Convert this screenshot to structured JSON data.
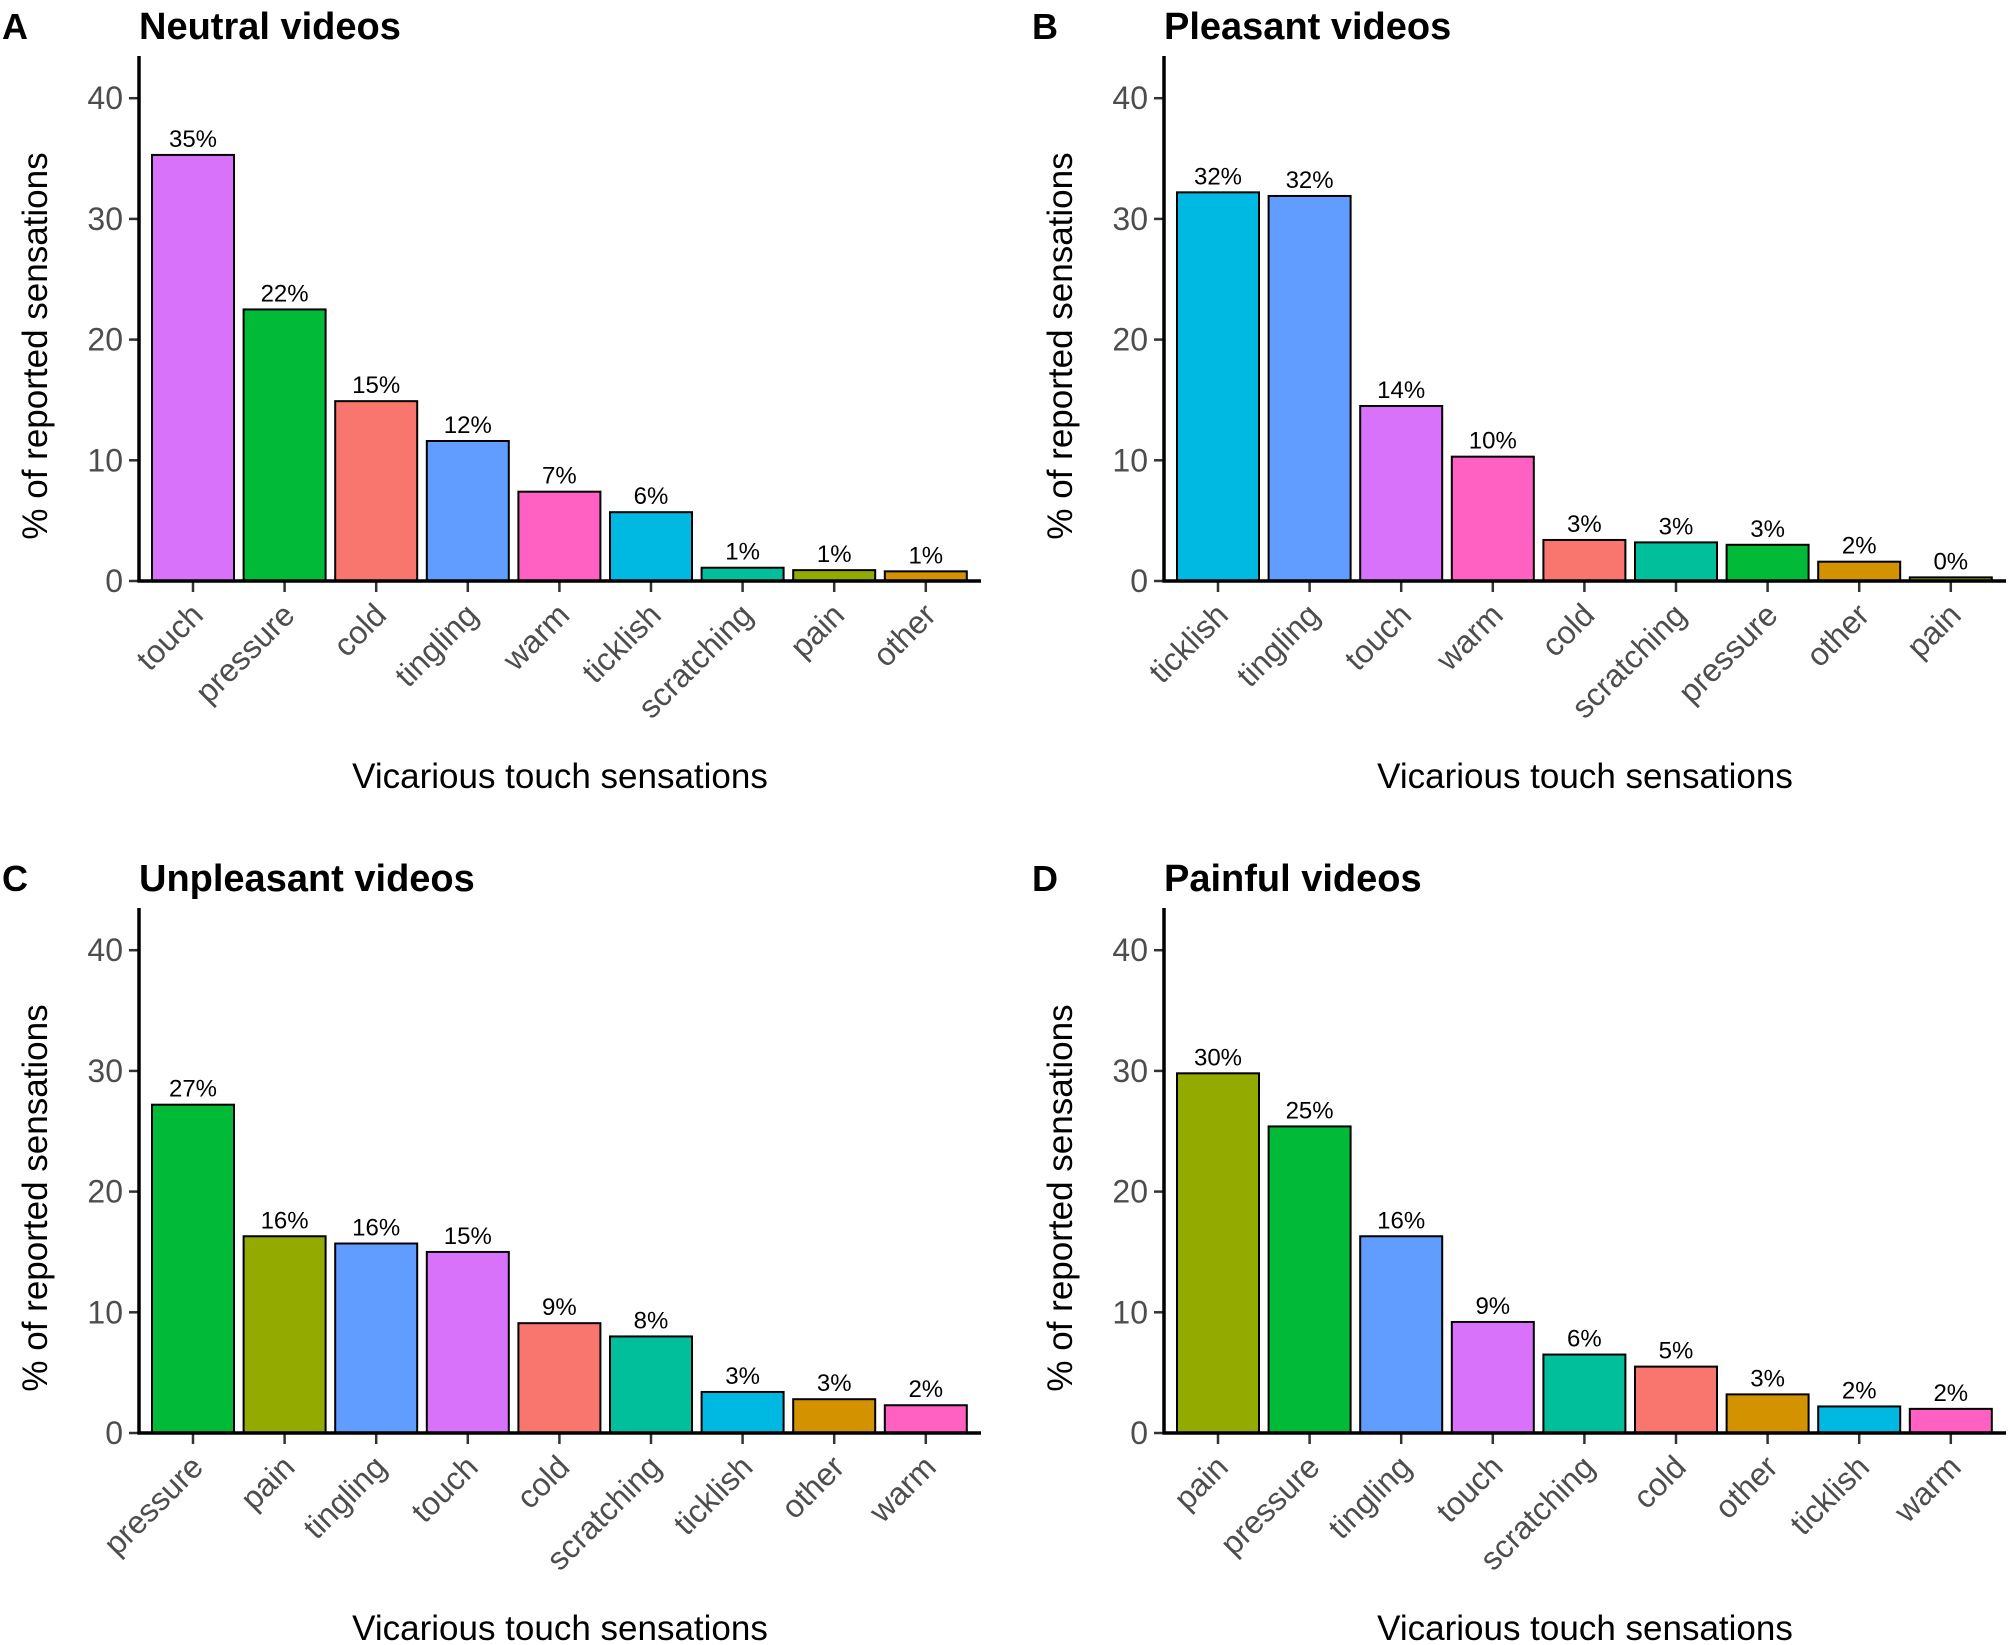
{
  "figure": {
    "colors": {
      "touch": "#D972FB",
      "pressure": "#00BA38",
      "cold": "#F8766D",
      "tingling": "#619CFF",
      "warm": "#FF61C3",
      "ticklish": "#00B9E3",
      "scratching": "#00BF9A",
      "pain": "#93AA00",
      "other": "#D39200"
    }
  },
  "chart_data": [
    {
      "type": "bar",
      "panel": "A",
      "title": "Neutral videos",
      "xlabel": "Vicarious touch sensations",
      "ylabel": "% of reported sensations",
      "ylim": [
        0,
        42
      ],
      "yticks": [
        0,
        10,
        20,
        30,
        40
      ],
      "categories": [
        "touch",
        "pressure",
        "cold",
        "tingling",
        "warm",
        "ticklish",
        "scratching",
        "pain",
        "other"
      ],
      "values": [
        35.3,
        22.5,
        14.9,
        11.6,
        7.4,
        5.7,
        1.1,
        0.9,
        0.8
      ],
      "data_labels": [
        "35%",
        "22%",
        "15%",
        "12%",
        "7%",
        "6%",
        "1%",
        "1%",
        "1%"
      ]
    },
    {
      "type": "bar",
      "panel": "B",
      "title": "Pleasant videos",
      "xlabel": "Vicarious touch sensations",
      "ylabel": "% of reported sensations",
      "ylim": [
        0,
        42
      ],
      "yticks": [
        0,
        10,
        20,
        30,
        40
      ],
      "categories": [
        "ticklish",
        "tingling",
        "touch",
        "warm",
        "cold",
        "scratching",
        "pressure",
        "other",
        "pain"
      ],
      "values": [
        32.2,
        31.9,
        14.5,
        10.3,
        3.4,
        3.2,
        3.0,
        1.6,
        0.3
      ],
      "data_labels": [
        "32%",
        "32%",
        "14%",
        "10%",
        "3%",
        "3%",
        "3%",
        "2%",
        "0%"
      ]
    },
    {
      "type": "bar",
      "panel": "C",
      "title": "Unpleasant videos",
      "xlabel": "Vicarious touch sensations",
      "ylabel": "% of reported sensations",
      "ylim": [
        0,
        42
      ],
      "yticks": [
        0,
        10,
        20,
        30,
        40
      ],
      "categories": [
        "pressure",
        "pain",
        "tingling",
        "touch",
        "cold",
        "scratching",
        "ticklish",
        "other",
        "warm"
      ],
      "values": [
        27.2,
        16.3,
        15.7,
        15.0,
        9.1,
        8.0,
        3.4,
        2.8,
        2.3
      ],
      "data_labels": [
        "27%",
        "16%",
        "16%",
        "15%",
        "9%",
        "8%",
        "3%",
        "3%",
        "2%"
      ]
    },
    {
      "type": "bar",
      "panel": "D",
      "title": "Painful videos",
      "xlabel": "Vicarious touch sensations",
      "ylabel": "% of reported sensations",
      "ylim": [
        0,
        42
      ],
      "yticks": [
        0,
        10,
        20,
        30,
        40
      ],
      "categories": [
        "pain",
        "pressure",
        "tingling",
        "touch",
        "scratching",
        "cold",
        "other",
        "ticklish",
        "warm"
      ],
      "values": [
        29.8,
        25.4,
        16.3,
        9.2,
        6.5,
        5.5,
        3.2,
        2.2,
        2.0
      ],
      "data_labels": [
        "30%",
        "25%",
        "16%",
        "9%",
        "6%",
        "5%",
        "3%",
        "2%",
        "2%"
      ]
    }
  ]
}
